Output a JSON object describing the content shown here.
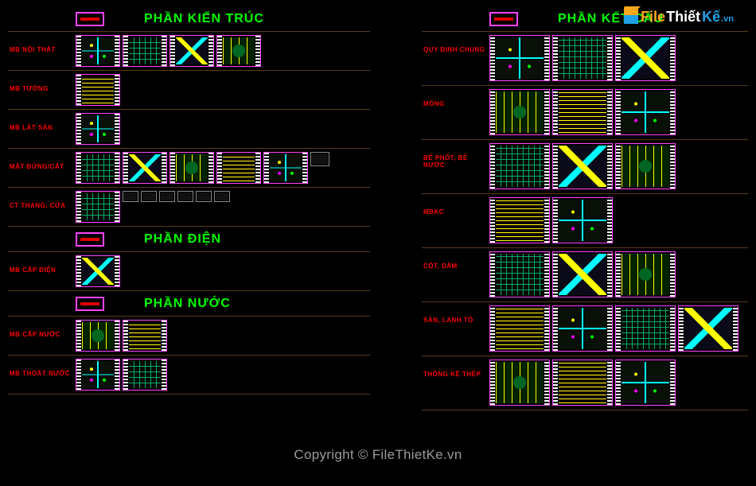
{
  "watermark": "Copyright © FileThietKe.vn",
  "logo": {
    "p1": "File",
    "p2": "Thiết",
    "p3": "Kế",
    "p4": ".vn"
  },
  "left": {
    "sections": [
      {
        "title": "PHẦN KIẾN TRÚC",
        "rows": [
          {
            "label": "MB NỘI THẤT",
            "thumbs": 4,
            "size": "m"
          },
          {
            "label": "MB TƯỜNG",
            "thumbs": 1,
            "size": "m"
          },
          {
            "label": "MB LÁT SÀN",
            "thumbs": 1,
            "size": "m"
          },
          {
            "label": "MẶT ĐỨNG/CẮT",
            "thumbs": 5,
            "size": "m",
            "extra_plain": 1
          },
          {
            "label": "CT THANG, CỬA",
            "thumbs": 1,
            "size": "m",
            "extra_small": 6
          }
        ]
      },
      {
        "title": "PHẦN ĐIỆN",
        "rows": [
          {
            "label": "MB CẤP ĐIỆN",
            "thumbs": 1,
            "size": "m"
          }
        ]
      },
      {
        "title": "PHẦN NƯỚC",
        "rows": [
          {
            "label": "MB CẤP NƯỚC",
            "thumbs": 2,
            "size": "m"
          },
          {
            "label": "MB THOÁT NƯỚC",
            "thumbs": 2,
            "size": "m"
          }
        ]
      }
    ]
  },
  "right": {
    "sections": [
      {
        "title": "PHẦN KẾT CẤU",
        "rows": [
          {
            "label": "QUY ĐỊNH CHUNG",
            "thumbs": 3,
            "size": "l"
          },
          {
            "label": "MÓNG",
            "thumbs": 3,
            "size": "l"
          },
          {
            "label": "BỂ PHỐT, BỂ NƯỚC",
            "thumbs": 3,
            "size": "l"
          },
          {
            "label": "MBKC",
            "thumbs": 2,
            "size": "l"
          },
          {
            "label": "CỘT, DẦM",
            "thumbs": 3,
            "size": "l",
            "narrow": true
          },
          {
            "label": "SÀN, LANH TÔ",
            "thumbs": 4,
            "size": "l"
          },
          {
            "label": "THỐNG KÊ THÉP",
            "thumbs": 3,
            "size": "m"
          }
        ]
      }
    ]
  },
  "colors": {
    "bg": "#000000",
    "section_title": "#00ff00",
    "row_label": "#ff0000",
    "thumb_border": "#ff44ff",
    "grid_line": "#5a3a1a",
    "watermark": "#9a9a9a"
  }
}
